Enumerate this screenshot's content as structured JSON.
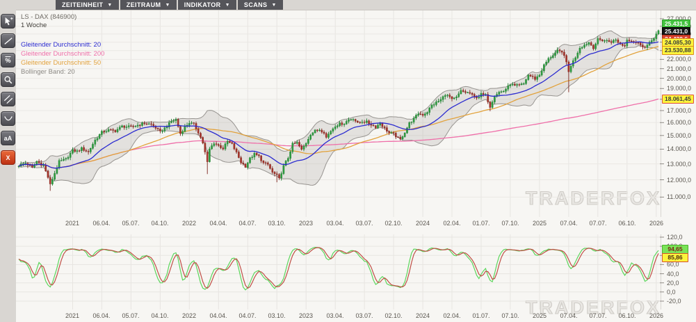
{
  "toolbar": {
    "caret": "▼",
    "buttons": [
      {
        "label": "ZEITEINHEIT"
      },
      {
        "label": "ZEITRAUM"
      },
      {
        "label": "INDIKATOR"
      },
      {
        "label": "SCANS"
      }
    ]
  },
  "sidebar": {
    "tools": [
      {
        "id": "cursor"
      },
      {
        "id": "trendline"
      },
      {
        "id": "percent",
        "label": "%",
        "overline": true
      },
      {
        "id": "magnifier"
      },
      {
        "id": "parallel-lines"
      },
      {
        "id": "arc"
      },
      {
        "id": "text",
        "label": "aA"
      },
      {
        "id": "close",
        "label": "X",
        "accent": true
      }
    ]
  },
  "chart_header": {
    "symbol": "LS - DAX (846900)",
    "timeframe": "1 Woche"
  },
  "legend": [
    {
      "label": "Gleitender Durchschnitt: 20",
      "color": "#2b2bd0"
    },
    {
      "label": "Gleitender Durchschnitt: 200",
      "color": "#ef6fa9"
    },
    {
      "label": "Gleitender Durchschnitt: 50",
      "color": "#e2a23c"
    },
    {
      "label": "Bollinger Band: 20",
      "color": "#8c8984"
    }
  ],
  "watermark": "TRADERFOX",
  "chart_data": [
    {
      "type": "candlestick",
      "title": "LS - DAX (846900)",
      "timeframe": "1 Woche",
      "scale": "log",
      "ylim": [
        9950,
        28250
      ],
      "weeks_total": 286,
      "colors": {
        "up": "#2f9e41",
        "up_border": "#1d7a2d",
        "down": "#a8342a",
        "down_border": "#7c241d"
      },
      "overlays": [
        {
          "name": "SMA20",
          "period": 20,
          "color": "#2b2bd0"
        },
        {
          "name": "SMA50",
          "period": 50,
          "color": "#e2a23c"
        },
        {
          "name": "SMA200",
          "period": 200,
          "color": "#ef6fa9"
        },
        {
          "name": "BollingerBand20",
          "period": 20,
          "color": "#979490",
          "fill": "rgba(150,147,142,0.20)"
        }
      ],
      "y_ticks": [
        {
          "v": 27000,
          "label": "27.000,0"
        },
        {
          "v": 26000,
          "label": "26.000,0"
        },
        {
          "v": 25000,
          "label": "25.000,0"
        },
        {
          "v": 24000,
          "label": "24.000,0"
        },
        {
          "v": 23000,
          "label": "23.000,0"
        },
        {
          "v": 22000,
          "label": "22.000,0"
        },
        {
          "v": 21000,
          "label": "21.000,0"
        },
        {
          "v": 20000,
          "label": "20.000,0"
        },
        {
          "v": 19000,
          "label": "19.000,0"
        },
        {
          "v": 18000,
          "label": "18.000,0"
        },
        {
          "v": 17000,
          "label": "17.000,0"
        },
        {
          "v": 16000,
          "label": "16.000,0"
        },
        {
          "v": 15000,
          "label": "15.000,0"
        },
        {
          "v": 14000,
          "label": "14.000,0"
        },
        {
          "v": 13000,
          "label": "13.000,0"
        },
        {
          "v": 12000,
          "label": "12.000,0"
        },
        {
          "v": 11000,
          "label": "11.000,0"
        }
      ],
      "x_tick_labels": [
        "2021",
        "06.04.",
        "05.07.",
        "04.10.",
        "2022",
        "04.04.",
        "04.07.",
        "03.10.",
        "2023",
        "03.04.",
        "03.07.",
        "02.10.",
        "2024",
        "02.04.",
        "01.07.",
        "07.10.",
        "2025",
        "07.04.",
        "07.07.",
        "06.10.",
        "2026"
      ],
      "x_tick_weeks": [
        24,
        37,
        50,
        63,
        76,
        89,
        102,
        115,
        128,
        141,
        154,
        167,
        180,
        193,
        206,
        219,
        232,
        245,
        258,
        271,
        284
      ],
      "price_anchors": [
        [
          0,
          12900
        ],
        [
          3,
          13050
        ],
        [
          6,
          12750
        ],
        [
          8,
          13150
        ],
        [
          11,
          12900
        ],
        [
          13,
          12150
        ],
        [
          14,
          11700
        ],
        [
          16,
          12400
        ],
        [
          18,
          13150
        ],
        [
          21,
          13300
        ],
        [
          24,
          13900
        ],
        [
          26,
          13850
        ],
        [
          28,
          14050
        ],
        [
          31,
          13800
        ],
        [
          34,
          14650
        ],
        [
          37,
          15250
        ],
        [
          40,
          15400
        ],
        [
          43,
          15350
        ],
        [
          46,
          15700
        ],
        [
          50,
          15650
        ],
        [
          53,
          15800
        ],
        [
          56,
          15950
        ],
        [
          59,
          15850
        ],
        [
          61,
          15600
        ],
        [
          63,
          15250
        ],
        [
          65,
          15550
        ],
        [
          68,
          16100
        ],
        [
          70,
          16250
        ],
        [
          72,
          15150
        ],
        [
          74,
          15650
        ],
        [
          76,
          16000
        ],
        [
          78,
          15850
        ],
        [
          80,
          15250
        ],
        [
          82,
          14450
        ],
        [
          84,
          13100
        ],
        [
          85,
          14000
        ],
        [
          87,
          14450
        ],
        [
          89,
          14250
        ],
        [
          91,
          14050
        ],
        [
          93,
          14550
        ],
        [
          95,
          14350
        ],
        [
          97,
          13750
        ],
        [
          99,
          13100
        ],
        [
          101,
          12850
        ],
        [
          103,
          13350
        ],
        [
          105,
          13650
        ],
        [
          107,
          13500
        ],
        [
          109,
          13050
        ],
        [
          111,
          12950
        ],
        [
          113,
          12450
        ],
        [
          115,
          12250
        ],
        [
          116,
          12050
        ],
        [
          118,
          12850
        ],
        [
          120,
          13400
        ],
        [
          122,
          14350
        ],
        [
          124,
          14450
        ],
        [
          126,
          13950
        ],
        [
          128,
          14450
        ],
        [
          130,
          15100
        ],
        [
          132,
          15350
        ],
        [
          134,
          15450
        ],
        [
          136,
          15250
        ],
        [
          137,
          14850
        ],
        [
          139,
          15350
        ],
        [
          141,
          15750
        ],
        [
          143,
          15900
        ],
        [
          145,
          15950
        ],
        [
          147,
          16250
        ],
        [
          149,
          16350
        ],
        [
          151,
          15950
        ],
        [
          153,
          16100
        ],
        [
          155,
          16050
        ],
        [
          157,
          15850
        ],
        [
          159,
          15650
        ],
        [
          161,
          15950
        ],
        [
          163,
          15550
        ],
        [
          165,
          15200
        ],
        [
          167,
          15100
        ],
        [
          169,
          14800
        ],
        [
          170,
          14700
        ],
        [
          172,
          15250
        ],
        [
          174,
          15950
        ],
        [
          176,
          16300
        ],
        [
          178,
          16750
        ],
        [
          180,
          16650
        ],
        [
          182,
          16900
        ],
        [
          184,
          17450
        ],
        [
          186,
          17700
        ],
        [
          188,
          17950
        ],
        [
          190,
          18450
        ],
        [
          192,
          18200
        ],
        [
          193,
          17950
        ],
        [
          195,
          18150
        ],
        [
          197,
          18750
        ],
        [
          199,
          18650
        ],
        [
          201,
          18550
        ],
        [
          203,
          18150
        ],
        [
          205,
          18250
        ],
        [
          206,
          18450
        ],
        [
          208,
          18350
        ],
        [
          210,
          17350
        ],
        [
          212,
          18350
        ],
        [
          214,
          18650
        ],
        [
          216,
          18750
        ],
        [
          218,
          19150
        ],
        [
          219,
          19450
        ],
        [
          221,
          19250
        ],
        [
          223,
          19300
        ],
        [
          225,
          19450
        ],
        [
          227,
          20350
        ],
        [
          229,
          20100
        ],
        [
          230,
          19950
        ],
        [
          232,
          20350
        ],
        [
          234,
          21350
        ],
        [
          236,
          22050
        ],
        [
          238,
          22500
        ],
        [
          240,
          22950
        ],
        [
          242,
          22750
        ],
        [
          243,
          22550
        ],
        [
          245,
          20650
        ],
        [
          246,
          21350
        ],
        [
          248,
          22250
        ],
        [
          250,
          23350
        ],
        [
          252,
          23650
        ],
        [
          254,
          23950
        ],
        [
          256,
          23350
        ],
        [
          258,
          24300
        ],
        [
          260,
          24250
        ],
        [
          262,
          24150
        ],
        [
          264,
          24050
        ],
        [
          266,
          24250
        ],
        [
          268,
          23750
        ],
        [
          270,
          23550
        ],
        [
          271,
          24350
        ],
        [
          273,
          24150
        ],
        [
          275,
          23950
        ],
        [
          277,
          23750
        ],
        [
          279,
          23350
        ],
        [
          281,
          23850
        ],
        [
          283,
          24550
        ],
        [
          285,
          25431
        ]
      ],
      "wick_low_overrides": [
        [
          14,
          11350
        ],
        [
          84,
          12350
        ],
        [
          115,
          11850
        ],
        [
          210,
          16950
        ],
        [
          245,
          18650
        ]
      ],
      "last_price_label": "25.431,0",
      "ask_price_label": "25.431,5",
      "badges": [
        {
          "text": "25.431,5",
          "top": 28,
          "bg": "#43c33f",
          "fg": "#ffffff",
          "border": "#2f9a2c"
        },
        {
          "text": "25.431,0",
          "top": 39,
          "bg": "#141414",
          "fg": "#ffffff",
          "border": "#000000"
        },
        {
          "text": "24.430,6",
          "top": 50,
          "bg": "#d8402c",
          "fg": "#ffffff",
          "border": "#a82f1f",
          "partially_occluded": true
        },
        {
          "text": "24.085,30",
          "top": 55,
          "bg": "#fbf43c",
          "fg": "#3a3a3a",
          "border": "#d98a21"
        },
        {
          "text": "23.530,88",
          "top": 66,
          "bg": "#fbf43c",
          "fg": "#3a3a3a",
          "border": "#d98a21"
        },
        {
          "text": "18.061,45",
          "top": 136,
          "bg": "#fbf43c",
          "fg": "#3a3a3a",
          "border": "#e0503c"
        }
      ]
    },
    {
      "type": "line",
      "name": "oscillator",
      "indicator": "stochastic(14,3) of weekly price",
      "ylim": [
        -25,
        125
      ],
      "series": [
        {
          "name": "fast",
          "color": "#5cd65c",
          "last_value": "94,65"
        },
        {
          "name": "slow",
          "color": "#bf4f45",
          "last_value": "85,86"
        }
      ],
      "y_ticks": [
        {
          "v": 120,
          "label": "120,0"
        },
        {
          "v": 100,
          "label": "100,0"
        },
        {
          "v": 80,
          "label": "80,0"
        },
        {
          "v": 60,
          "label": "60,0"
        },
        {
          "v": 40,
          "label": "40,0"
        },
        {
          "v": 20,
          "label": "20,0"
        },
        {
          "v": 0,
          "label": "0,0"
        },
        {
          "v": -20,
          "label": "-20,0"
        }
      ],
      "badges": [
        {
          "text": "94,65",
          "top": 352,
          "bg": "#7ae357",
          "fg": "#7c2418",
          "border": "#49b32c"
        },
        {
          "text": "85,86",
          "top": 364,
          "bg": "#fbf43c",
          "fg": "#4a2a10",
          "border": "#d8502c"
        }
      ]
    }
  ]
}
